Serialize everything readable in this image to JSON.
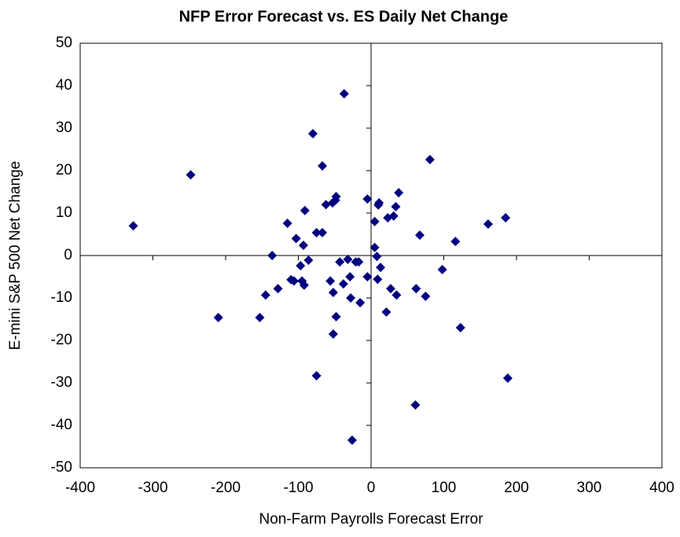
{
  "chart_data": {
    "type": "scatter",
    "title": "NFP Error Forecast vs. ES Daily Net Change",
    "x_label": "Non-Farm Payrolls Forecast Error",
    "y_label": "E-mini S&P 500 Net Change",
    "color": "#000080",
    "xlim": [
      -400,
      400
    ],
    "xticks": [
      -400,
      -300,
      -200,
      -100,
      0,
      100,
      200,
      300,
      400
    ],
    "ylim": [
      -50,
      50
    ],
    "yticks": [
      -50,
      -40,
      -30,
      -20,
      -10,
      0,
      10,
      20,
      30,
      40,
      50
    ],
    "x": [
      -327,
      -248,
      -210,
      -153,
      -145,
      -136,
      -128,
      -115,
      -110,
      -106,
      -103,
      -97,
      -95,
      -93,
      -92,
      -91,
      -86,
      -80,
      -75,
      -75,
      -67,
      -67,
      -62,
      -56,
      -53,
      -52,
      -52,
      -49,
      -48,
      -48,
      -43,
      -38,
      -37,
      -32,
      -29,
      -28,
      -26,
      -21,
      -17,
      -15,
      -5,
      -5,
      5,
      5,
      8,
      9,
      10,
      11,
      13,
      21,
      23,
      27,
      31,
      34,
      35,
      38,
      62,
      61,
      67,
      75,
      81,
      98,
      116,
      123,
      161,
      185,
      188
    ],
    "values": [
      7,
      19,
      -14.6,
      -14.6,
      -9.3,
      0,
      -7.8,
      7.6,
      -5.7,
      -6,
      4,
      -2.4,
      -6,
      2.4,
      -7,
      10.6,
      -1.1,
      28.7,
      5.4,
      -28.3,
      5.4,
      21.1,
      12,
      -6,
      12.4,
      -8.7,
      -18.5,
      13,
      13.9,
      -14.4,
      -1.5,
      -6.7,
      38.1,
      -0.9,
      -5,
      -10,
      -43.5,
      -1.5,
      -1.5,
      -11.1,
      -5,
      13.3,
      1.9,
      8,
      -0.2,
      -5.6,
      11.9,
      12.4,
      -2.8,
      -13.3,
      8.9,
      -7.8,
      9.3,
      11.5,
      -9.3,
      14.8,
      -7.8,
      -35.2,
      4.8,
      -9.6,
      22.6,
      -3.3,
      3.3,
      -17,
      7.4,
      8.9,
      -28.9
    ]
  }
}
